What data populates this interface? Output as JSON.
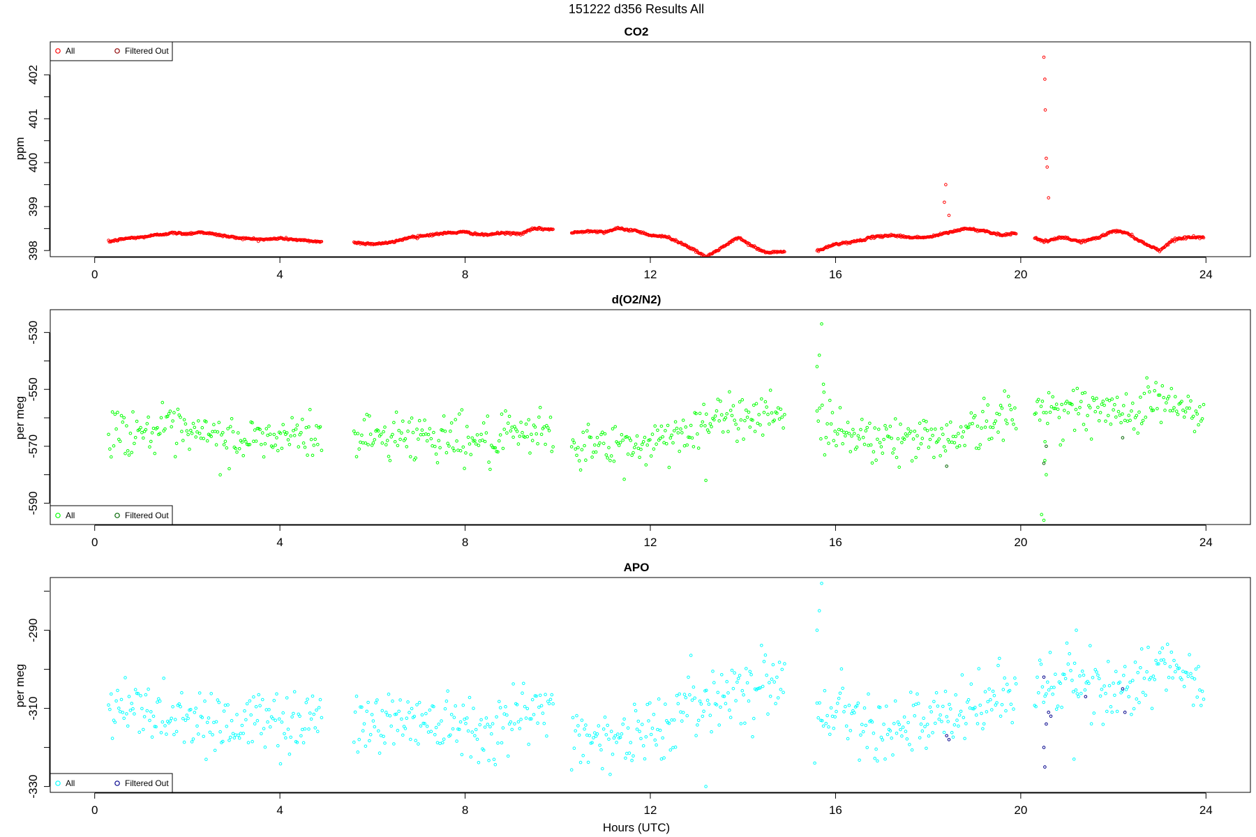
{
  "figure": {
    "title": "151222   d356   Results All",
    "xlabel": "Hours (UTC)"
  },
  "chart_data": [
    {
      "type": "scatter",
      "title": "CO2",
      "xlabel": "",
      "ylabel": "ppm",
      "xlim": [
        -0.96,
        24.96
      ],
      "ylim": [
        397.86,
        402.75
      ],
      "xticks": [
        0,
        4,
        8,
        12,
        16,
        20,
        24
      ],
      "yticks": [
        398,
        399,
        400,
        401,
        402
      ],
      "legend": {
        "position": "top-left",
        "entries": [
          "All",
          "Filtered Out"
        ]
      },
      "series": [
        {
          "name": "All",
          "color": "#ff0000",
          "marker": "circle-open",
          "segments": [
            {
              "x_range": [
                0.3,
                4.9
              ],
              "points": [
                [
                  0.3,
                  398.2
                ],
                [
                  0.7,
                  398.28
                ],
                [
                  1.0,
                  398.3
                ],
                [
                  1.3,
                  398.35
                ],
                [
                  1.7,
                  398.4
                ],
                [
                  2.0,
                  398.38
                ],
                [
                  2.3,
                  398.42
                ],
                [
                  2.7,
                  398.35
                ],
                [
                  3.0,
                  398.3
                ],
                [
                  3.3,
                  398.27
                ],
                [
                  3.7,
                  398.25
                ],
                [
                  4.0,
                  398.28
                ],
                [
                  4.3,
                  398.25
                ],
                [
                  4.6,
                  398.22
                ],
                [
                  4.9,
                  398.2
                ]
              ]
            },
            {
              "x_range": [
                5.6,
                9.9
              ],
              "points": [
                [
                  5.6,
                  398.18
                ],
                [
                  6.0,
                  398.15
                ],
                [
                  6.4,
                  398.18
                ],
                [
                  6.8,
                  398.3
                ],
                [
                  7.2,
                  398.35
                ],
                [
                  7.6,
                  398.4
                ],
                [
                  8.0,
                  398.42
                ],
                [
                  8.4,
                  398.35
                ],
                [
                  8.8,
                  398.4
                ],
                [
                  9.2,
                  398.38
                ],
                [
                  9.5,
                  398.5
                ],
                [
                  9.9,
                  398.48
                ]
              ]
            },
            {
              "x_range": [
                10.3,
                14.9
              ],
              "points": [
                [
                  10.3,
                  398.4
                ],
                [
                  10.7,
                  398.45
                ],
                [
                  11.0,
                  398.42
                ],
                [
                  11.3,
                  398.5
                ],
                [
                  11.7,
                  398.45
                ],
                [
                  12.0,
                  398.35
                ],
                [
                  12.4,
                  398.3
                ],
                [
                  12.8,
                  398.1
                ],
                [
                  13.2,
                  397.85
                ],
                [
                  13.6,
                  398.1
                ],
                [
                  13.9,
                  398.3
                ],
                [
                  14.2,
                  398.1
                ],
                [
                  14.5,
                  397.95
                ],
                [
                  14.9,
                  397.98
                ]
              ]
            },
            {
              "x_range": [
                15.6,
                19.9
              ],
              "points": [
                [
                  15.6,
                  397.98
                ],
                [
                  16.0,
                  398.15
                ],
                [
                  16.4,
                  398.2
                ],
                [
                  16.8,
                  398.3
                ],
                [
                  17.2,
                  398.35
                ],
                [
                  17.6,
                  398.3
                ],
                [
                  18.0,
                  398.3
                ],
                [
                  18.4,
                  398.4
                ],
                [
                  18.8,
                  398.5
                ],
                [
                  19.2,
                  398.45
                ],
                [
                  19.6,
                  398.35
                ],
                [
                  19.9,
                  398.4
                ]
              ]
            },
            {
              "x_range": [
                20.3,
                23.95
              ],
              "points": [
                [
                  20.3,
                  398.3
                ],
                [
                  20.5,
                  398.2
                ],
                [
                  20.9,
                  398.3
                ],
                [
                  21.3,
                  398.2
                ],
                [
                  21.7,
                  398.3
                ],
                [
                  22.0,
                  398.45
                ],
                [
                  22.3,
                  398.4
                ],
                [
                  22.6,
                  398.2
                ],
                [
                  23.0,
                  398.0
                ],
                [
                  23.3,
                  398.25
                ],
                [
                  23.6,
                  398.3
                ],
                [
                  23.95,
                  398.3
                ]
              ]
            }
          ],
          "spikes": [
            [
              18.35,
              399.1
            ],
            [
              18.38,
              399.5
            ],
            [
              18.45,
              398.8
            ],
            [
              20.5,
              402.4
            ],
            [
              20.52,
              401.9
            ],
            [
              20.53,
              401.2
            ],
            [
              20.55,
              400.1
            ],
            [
              20.57,
              399.9
            ],
            [
              20.6,
              399.2
            ]
          ]
        },
        {
          "name": "Filtered Out",
          "color": "#8b0000",
          "marker": "circle-open",
          "points": []
        }
      ]
    },
    {
      "type": "scatter",
      "title": "d(O2/N2)",
      "xlabel": "",
      "ylabel": "per meg",
      "xlim": [
        -0.96,
        24.96
      ],
      "ylim": [
        -597.5,
        -522
      ],
      "xticks": [
        0,
        4,
        8,
        12,
        16,
        20,
        24
      ],
      "yticks": [
        -590,
        -570,
        -550,
        -530
      ],
      "legend": {
        "position": "bottom-left",
        "entries": [
          "All",
          "Filtered Out"
        ]
      },
      "series": [
        {
          "name": "All",
          "color": "#00ff00",
          "marker": "circle-open",
          "segments": [
            {
              "x_range": [
                0.3,
                4.9
              ],
              "points": [
                [
                  0.3,
                  -565
                ],
                [
                  1.0,
                  -564
                ],
                [
                  2.0,
                  -566
                ],
                [
                  3.0,
                  -568
                ],
                [
                  4.0,
                  -567
                ],
                [
                  4.9,
                  -566
                ]
              ]
            },
            {
              "x_range": [
                5.6,
                9.9
              ],
              "points": [
                [
                  5.6,
                  -567
                ],
                [
                  6.5,
                  -566
                ],
                [
                  7.5,
                  -566
                ],
                [
                  8.5,
                  -569
                ],
                [
                  9.5,
                  -566
                ],
                [
                  9.9,
                  -565
                ]
              ]
            },
            {
              "x_range": [
                10.3,
                14.9
              ],
              "points": [
                [
                  10.3,
                  -569
                ],
                [
                  11.5,
                  -571
                ],
                [
                  12.3,
                  -567
                ],
                [
                  13.0,
                  -563
                ],
                [
                  14.0,
                  -559
                ],
                [
                  14.9,
                  -557
                ]
              ]
            },
            {
              "x_range": [
                15.6,
                19.9
              ],
              "points": [
                [
                  15.6,
                  -562
                ],
                [
                  16.5,
                  -566
                ],
                [
                  17.5,
                  -568
                ],
                [
                  18.5,
                  -566
                ],
                [
                  19.3,
                  -562
                ],
                [
                  19.9,
                  -559
                ]
              ]
            },
            {
              "x_range": [
                20.3,
                23.95
              ],
              "points": [
                [
                  20.3,
                  -558
                ],
                [
                  21.0,
                  -556
                ],
                [
                  22.0,
                  -559
                ],
                [
                  23.0,
                  -553
                ],
                [
                  23.95,
                  -561
                ]
              ]
            }
          ],
          "spikes": [
            [
              13.2,
              -582
            ],
            [
              15.6,
              -542
            ],
            [
              15.65,
              -538
            ],
            [
              15.7,
              -527
            ],
            [
              15.75,
              -551
            ],
            [
              20.45,
              -594
            ],
            [
              20.5,
              -596
            ],
            [
              20.55,
              -580
            ],
            [
              20.52,
              -575
            ]
          ]
        },
        {
          "name": "Filtered Out",
          "color": "#006400",
          "marker": "circle-open",
          "points": [
            [
              18.4,
              -577
            ],
            [
              20.5,
              -576
            ],
            [
              20.55,
              -570
            ],
            [
              22.2,
              -567
            ]
          ]
        }
      ]
    },
    {
      "type": "scatter",
      "title": "APO",
      "xlabel": "Hours (UTC)",
      "ylabel": "per meg",
      "xlim": [
        -0.96,
        24.96
      ],
      "ylim": [
        -331.5,
        -276.5
      ],
      "xticks": [
        0,
        4,
        8,
        12,
        16,
        20,
        24
      ],
      "yticks": [
        -330,
        -310,
        -290
      ],
      "legend": {
        "position": "bottom-left",
        "entries": [
          "All",
          "Filtered Out"
        ]
      },
      "series": [
        {
          "name": "All",
          "color": "#00ffff",
          "marker": "circle-open",
          "segments": [
            {
              "x_range": [
                0.3,
                4.9
              ],
              "points": [
                [
                  0.3,
                  -311
                ],
                [
                  1.0,
                  -310
                ],
                [
                  2.0,
                  -312
                ],
                [
                  3.0,
                  -314
                ],
                [
                  4.0,
                  -313
                ],
                [
                  4.9,
                  -312
                ]
              ]
            },
            {
              "x_range": [
                5.6,
                9.9
              ],
              "points": [
                [
                  5.6,
                  -314
                ],
                [
                  6.5,
                  -313
                ],
                [
                  7.5,
                  -312
                ],
                [
                  8.5,
                  -315
                ],
                [
                  9.5,
                  -311
                ],
                [
                  9.9,
                  -310
                ]
              ]
            },
            {
              "x_range": [
                10.3,
                14.9
              ],
              "points": [
                [
                  10.3,
                  -316
                ],
                [
                  11.5,
                  -318
                ],
                [
                  12.3,
                  -314
                ],
                [
                  13.0,
                  -309
                ],
                [
                  14.0,
                  -304
                ],
                [
                  14.9,
                  -303
                ]
              ]
            },
            {
              "x_range": [
                15.6,
                19.9
              ],
              "points": [
                [
                  15.6,
                  -309
                ],
                [
                  16.5,
                  -312
                ],
                [
                  17.5,
                  -315
                ],
                [
                  18.5,
                  -313
                ],
                [
                  19.3,
                  -308
                ],
                [
                  19.9,
                  -305
                ]
              ]
            },
            {
              "x_range": [
                20.3,
                23.95
              ],
              "points": [
                [
                  20.3,
                  -305
                ],
                [
                  21.0,
                  -303
                ],
                [
                  22.0,
                  -306
                ],
                [
                  23.0,
                  -299
                ],
                [
                  23.95,
                  -306
                ]
              ]
            }
          ],
          "spikes": [
            [
              13.2,
              -330
            ],
            [
              15.6,
              -290
            ],
            [
              15.65,
              -285
            ],
            [
              15.7,
              -278
            ],
            [
              15.55,
              -324
            ],
            [
              21.2,
              -290
            ],
            [
              21.15,
              -323
            ]
          ]
        },
        {
          "name": "Filtered Out",
          "color": "#00008b",
          "marker": "circle-open",
          "points": [
            [
              18.4,
              -317
            ],
            [
              18.45,
              -318
            ],
            [
              20.5,
              -302
            ],
            [
              20.55,
              -314
            ],
            [
              20.6,
              -311
            ],
            [
              20.65,
              -312
            ],
            [
              20.52,
              -325
            ],
            [
              20.5,
              -320
            ],
            [
              21.4,
              -307
            ],
            [
              22.2,
              -305
            ],
            [
              22.25,
              -311
            ]
          ]
        }
      ]
    }
  ]
}
